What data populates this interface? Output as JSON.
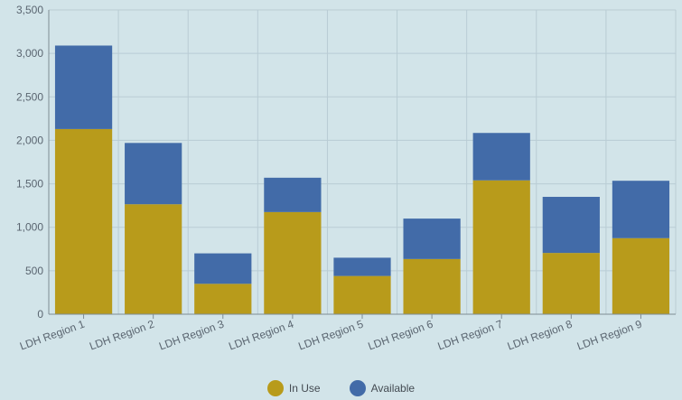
{
  "chart_data": {
    "type": "bar",
    "stacked": true,
    "categories": [
      "LDH Region 1",
      "LDH Region 2",
      "LDH Region 3",
      "LDH Region 4",
      "LDH Region 5",
      "LDH Region 6",
      "LDH Region 7",
      "LDH Region 8",
      "LDH Region 9"
    ],
    "series": [
      {
        "name": "In Use",
        "color": "#b89b1b",
        "values": [
          2130,
          1265,
          350,
          1175,
          440,
          635,
          1540,
          705,
          875
        ]
      },
      {
        "name": "Available",
        "color": "#426ba8",
        "values": [
          960,
          705,
          350,
          395,
          210,
          465,
          545,
          645,
          660
        ]
      }
    ],
    "y_ticks": [
      "0",
      "500",
      "1,000",
      "1,500",
      "2,000",
      "2,500",
      "3,000",
      "3,500"
    ],
    "ylim": [
      0,
      3500
    ],
    "grid": true,
    "legend_position": "bottom-center",
    "xlabel": "",
    "ylabel": ""
  },
  "colors": {
    "background": "#d2e4e9",
    "grid": "#b9ccd4",
    "axis": "#7f8c94"
  }
}
